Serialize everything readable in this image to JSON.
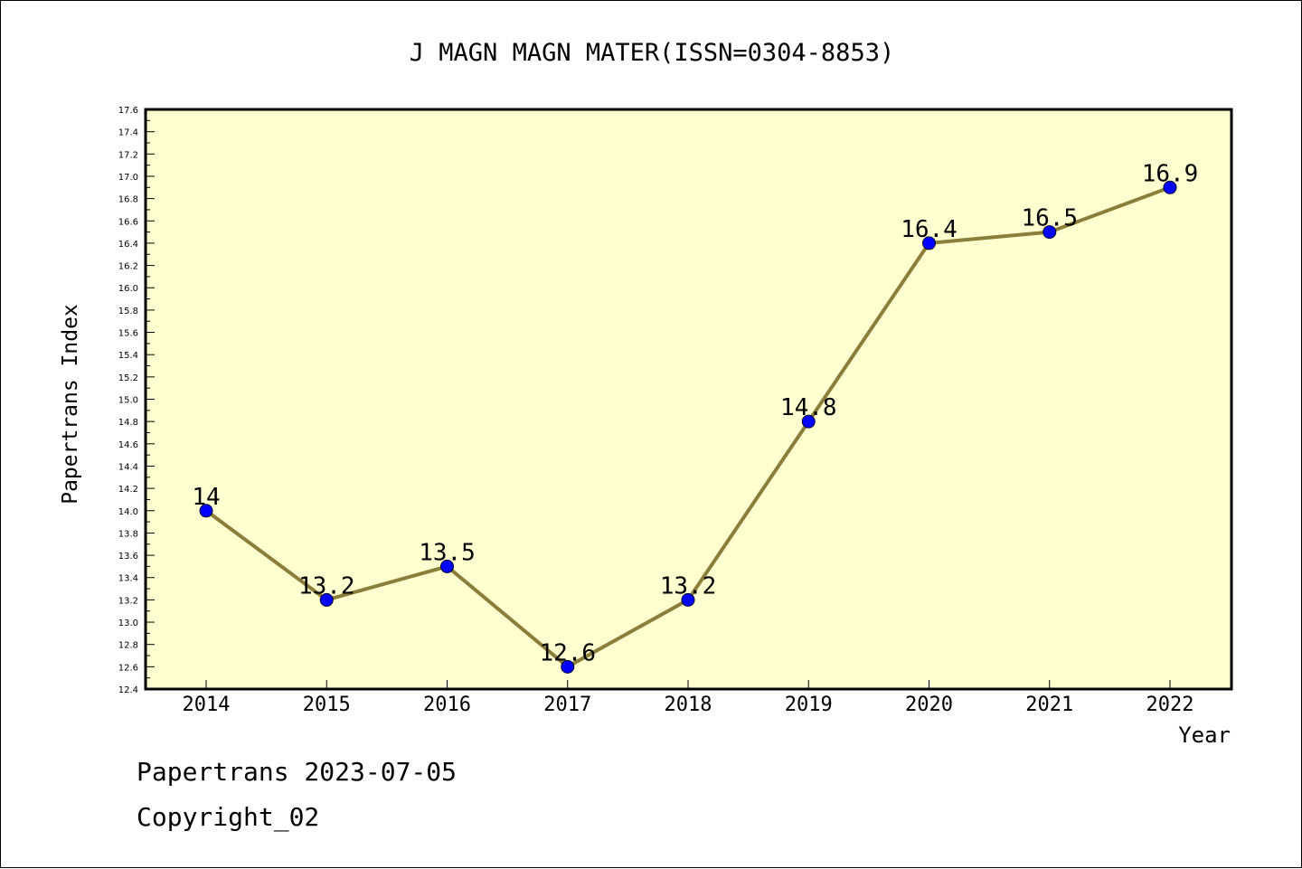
{
  "chart_data": {
    "type": "line",
    "title": "J MAGN MAGN MATER(ISSN=0304-8853)",
    "xlabel": "Year",
    "ylabel": "Papertrans Index",
    "categories": [
      "2014",
      "2015",
      "2016",
      "2017",
      "2018",
      "2019",
      "2020",
      "2021",
      "2022"
    ],
    "values": [
      14,
      13.2,
      13.5,
      12.6,
      13.2,
      14.8,
      16.4,
      16.5,
      16.9
    ],
    "data_labels": [
      "14",
      "13.2",
      "13.5",
      "12.6",
      "13.2",
      "14.8",
      "16.4",
      "16.5",
      "16.9"
    ],
    "ylim": [
      12.4,
      17.6
    ],
    "y_ticks": [
      "12.4",
      "12.6",
      "12.8",
      "13.0",
      "13.2",
      "13.4",
      "13.6",
      "13.8",
      "14.0",
      "14.2",
      "14.4",
      "14.6",
      "14.8",
      "15.0",
      "15.2",
      "15.4",
      "15.6",
      "15.8",
      "16.0",
      "16.2",
      "16.4",
      "16.6",
      "16.8",
      "17.0",
      "17.2",
      "17.4",
      "17.6"
    ],
    "grid": false,
    "colors": {
      "plot_background": "#ffffd0",
      "line": "#8b7d3a",
      "marker": "#0000ff"
    }
  },
  "footer": {
    "line1": "Papertrans 2023-07-05",
    "line2": "Copyright_02"
  }
}
